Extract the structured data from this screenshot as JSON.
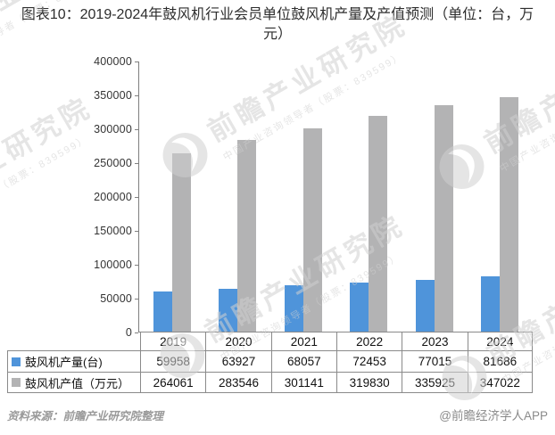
{
  "title": "图表10：2019-2024年鼓风机行业会员单位鼓风机产量及产值预测（单位：台，万元）",
  "watermark": {
    "brand_large": "前瞻产业研究院",
    "brand_small": "中国产业咨询领导者（股票：839599）"
  },
  "chart_data": {
    "type": "bar",
    "title": "2019-2024年鼓风机行业会员单位鼓风机产量及产值预测",
    "categories": [
      "2019",
      "2020",
      "2021",
      "2022",
      "2023",
      "2024"
    ],
    "series": [
      {
        "name": "鼓风机产量(台)",
        "color": "#4F94DA",
        "values": [
          59958,
          63927,
          68057,
          72453,
          77015,
          81686
        ]
      },
      {
        "name": "鼓风机产值（万元）",
        "color": "#B3B3B4",
        "values": [
          264061,
          283546,
          301141,
          319830,
          335925,
          347022
        ]
      }
    ],
    "ylim": [
      0,
      400000
    ],
    "ytick_step": 50000,
    "grid": false,
    "legend_position": "table-left",
    "xlabel": "",
    "ylabel": ""
  },
  "footer": {
    "source": "资料来源：前瞻产业研究院整理",
    "credit": "@前瞻经济学人APP"
  }
}
